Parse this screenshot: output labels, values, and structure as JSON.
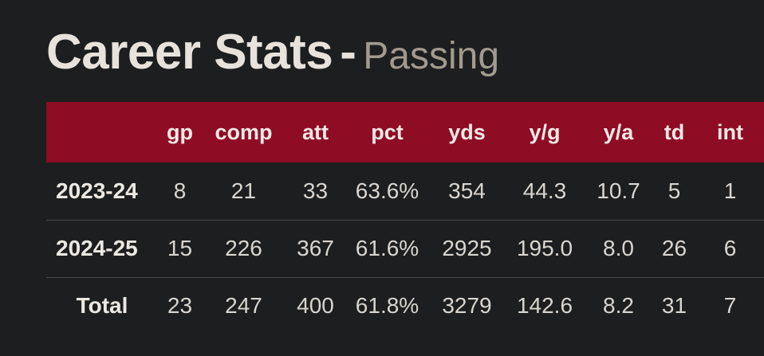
{
  "header": {
    "title": "Career Stats",
    "separator": "-",
    "subtitle": "Passing"
  },
  "table": {
    "columns": [
      "",
      "gp",
      "comp",
      "att",
      "pct",
      "yds",
      "y/g",
      "y/a",
      "td",
      "int"
    ],
    "rows": [
      [
        "2023-24",
        "8",
        "21",
        "33",
        "63.6%",
        "354",
        "44.3",
        "10.7",
        "5",
        "1"
      ],
      [
        "2024-25",
        "15",
        "226",
        "367",
        "61.6%",
        "2925",
        "195.0",
        "8.0",
        "26",
        "6"
      ],
      [
        "Total",
        "23",
        "247",
        "400",
        "61.8%",
        "3279",
        "142.6",
        "8.2",
        "31",
        "7"
      ]
    ]
  },
  "colors": {
    "background": "#1d1e20",
    "header_bar": "#8e0c24",
    "title_text": "#e7e3dc",
    "subtitle_text": "#a29a8e"
  }
}
